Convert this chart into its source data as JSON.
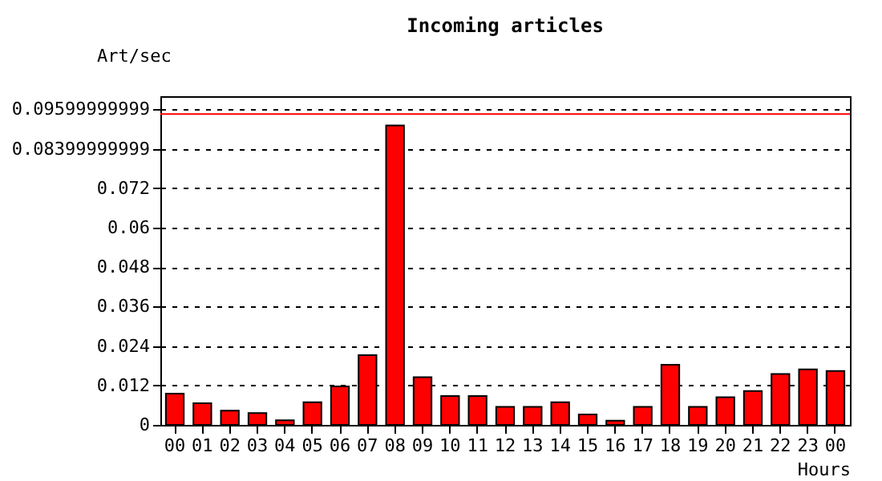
{
  "chart_data": {
    "type": "bar",
    "title": "Incoming articles",
    "ylabel": "Art/sec",
    "xlabel": "Hours",
    "categories": [
      "00",
      "01",
      "02",
      "03",
      "04",
      "05",
      "06",
      "07",
      "08",
      "09",
      "10",
      "11",
      "12",
      "13",
      "14",
      "15",
      "16",
      "17",
      "18",
      "19",
      "20",
      "21",
      "22",
      "23",
      "00"
    ],
    "series": [
      {
        "color": "#ff0000",
        "values": [
          0.0095,
          0.0066,
          0.0043,
          0.0036,
          0.0014,
          0.0069,
          0.0117,
          0.0212,
          0.0911,
          0.0145,
          0.0088,
          0.0088,
          0.0055,
          0.0055,
          0.0069,
          0.0032,
          0.0013,
          0.0055,
          0.0183,
          0.0055,
          0.0084,
          0.0103,
          0.0155,
          0.0169,
          0.0164
        ]
      }
    ],
    "ylim": [
      0,
      0.1
    ],
    "yticks": [
      0,
      0.012,
      0.024,
      0.036,
      0.048,
      0.06,
      0.072,
      0.08399999999,
      0.09599999999
    ],
    "ref_lines": [
      {
        "axis": "y",
        "value": 0.0946,
        "color": "#ff0000"
      }
    ],
    "grid": "y"
  }
}
